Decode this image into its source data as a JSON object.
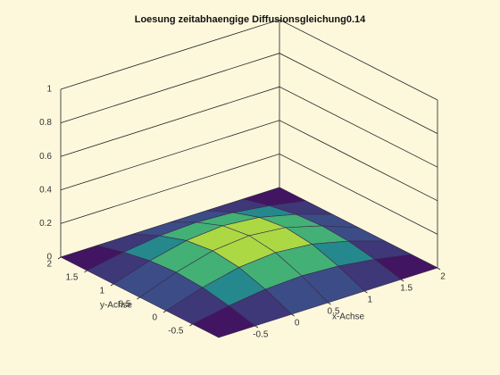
{
  "chart_data": {
    "type": "surface",
    "title": "Loesung zeitabhaengige Diffusionsgleichung0.14",
    "x_label": "x-Achse",
    "y_label": "y-Achse",
    "x": [
      -1,
      -0.5,
      0,
      0.5,
      1,
      1.5,
      2
    ],
    "y": [
      -1,
      -0.5,
      0,
      0.5,
      1,
      1.5,
      2
    ],
    "z": [
      [
        0,
        0,
        0,
        0,
        0,
        0,
        0
      ],
      [
        0,
        0.04,
        0.069,
        0.08,
        0.069,
        0.04,
        0
      ],
      [
        0,
        0.069,
        0.12,
        0.139,
        0.12,
        0.069,
        0
      ],
      [
        0,
        0.08,
        0.139,
        0.16,
        0.139,
        0.08,
        0
      ],
      [
        0,
        0.069,
        0.12,
        0.139,
        0.12,
        0.069,
        0
      ],
      [
        0,
        0.04,
        0.069,
        0.08,
        0.069,
        0.04,
        0
      ],
      [
        0,
        0,
        0,
        0,
        0,
        0,
        0
      ]
    ],
    "xlim": [
      -1,
      2
    ],
    "ylim": [
      -1,
      2
    ],
    "zlim": [
      0,
      1
    ],
    "xticks": [
      -0.5,
      0,
      0.5,
      1,
      1.5,
      2
    ],
    "yticks": [
      -0.5,
      0,
      0.5,
      1,
      1.5,
      2
    ],
    "zticks": [
      0,
      0.2,
      0.4,
      0.6,
      0.8,
      1
    ],
    "colormap": "viridis",
    "grid": true
  }
}
